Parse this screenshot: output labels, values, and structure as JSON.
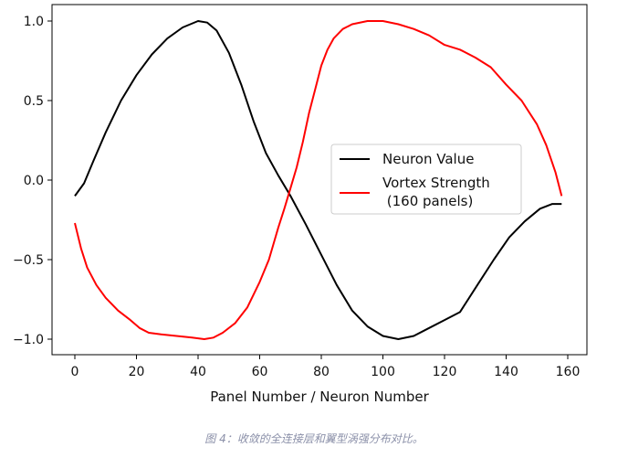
{
  "chart_data": {
    "type": "line",
    "title": "",
    "xlabel": "Panel Number / Neuron Number",
    "ylabel": "",
    "xlim": [
      -7,
      166
    ],
    "ylim": [
      -1.1,
      1.1
    ],
    "xticks": [
      0,
      20,
      40,
      60,
      80,
      100,
      120,
      140,
      160
    ],
    "xtick_labels": [
      "0",
      "20",
      "40",
      "60",
      "80",
      "100",
      "120",
      "140",
      "160"
    ],
    "yticks": [
      1.0,
      0.5,
      0.0,
      -0.5,
      -1.0
    ],
    "ytick_labels": [
      "1.0",
      "0.5",
      "0.0",
      "−0.5",
      "−1.0"
    ],
    "grid": false,
    "legend_position": "center-right",
    "series": [
      {
        "name": "Neuron Value",
        "color": "#000000",
        "x": [
          0,
          3,
          6,
          10,
          15,
          20,
          25,
          30,
          35,
          40,
          43,
          46,
          50,
          54,
          58,
          62,
          66,
          70,
          75,
          80,
          85,
          90,
          95,
          100,
          105,
          110,
          115,
          120,
          125,
          131,
          136,
          141,
          146,
          151,
          155,
          158
        ],
        "y": [
          -0.1,
          -0.02,
          0.12,
          0.3,
          0.5,
          0.66,
          0.79,
          0.89,
          0.96,
          1.0,
          0.99,
          0.94,
          0.8,
          0.6,
          0.37,
          0.17,
          0.03,
          -0.1,
          -0.28,
          -0.47,
          -0.66,
          -0.82,
          -0.92,
          -0.98,
          -1.0,
          -0.98,
          -0.93,
          -0.88,
          -0.83,
          -0.65,
          -0.5,
          -0.36,
          -0.26,
          -0.18,
          -0.15,
          -0.15
        ]
      },
      {
        "name": "Vortex Strength\n (160 panels)",
        "color": "#ff0000",
        "x": [
          0,
          2,
          4,
          7,
          10,
          14,
          18,
          21,
          24,
          28,
          33,
          38,
          42,
          45,
          48,
          52,
          56,
          60,
          63,
          66,
          68,
          70,
          72,
          74,
          76,
          78,
          80,
          82,
          84,
          87,
          90,
          95,
          100,
          105,
          110,
          115,
          120,
          125,
          130,
          135,
          140,
          145,
          150,
          153,
          156,
          158
        ],
        "y": [
          -0.27,
          -0.43,
          -0.55,
          -0.66,
          -0.74,
          -0.82,
          -0.88,
          -0.93,
          -0.96,
          -0.97,
          -0.98,
          -0.99,
          -1.0,
          -0.99,
          -0.96,
          -0.9,
          -0.8,
          -0.64,
          -0.5,
          -0.3,
          -0.18,
          -0.05,
          0.08,
          0.24,
          0.42,
          0.57,
          0.72,
          0.82,
          0.89,
          0.95,
          0.98,
          1.0,
          1.0,
          0.98,
          0.95,
          0.91,
          0.85,
          0.82,
          0.77,
          0.71,
          0.6,
          0.5,
          0.35,
          0.22,
          0.05,
          -0.1
        ]
      }
    ],
    "legend": [
      "Neuron Value",
      "Vortex Strength",
      " (160 panels)"
    ]
  },
  "caption": "图 4：收敛的全连接层和翼型涡强分布对比。"
}
